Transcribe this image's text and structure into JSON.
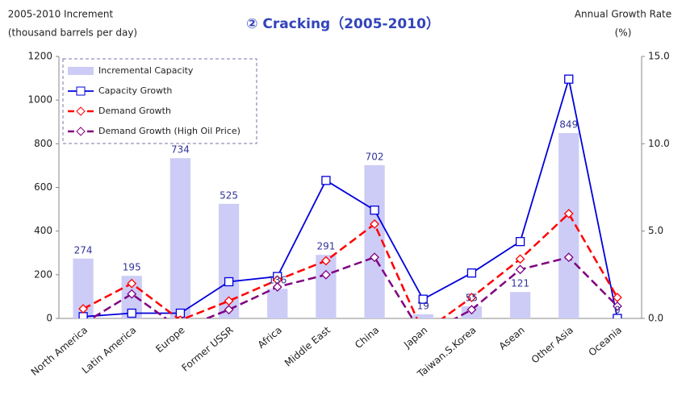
{
  "chart_data": {
    "type": "bar_line",
    "title": "② Cracking（2005-2010）",
    "y_label": [
      "2005-2010 Increment",
      "(thousand barrels per day)"
    ],
    "y2_label": [
      "Annual Growth Rate",
      "(%)"
    ],
    "categories": [
      "North America",
      "Latin America",
      "Europe",
      "Former USSR",
      "Africa",
      "Middle East",
      "China",
      "Japan",
      "Taiwan.S.Korea",
      "Asean",
      "Other Asia",
      "Oceania"
    ],
    "series": [
      {
        "name": "Incremental Capacity",
        "type": "bar",
        "axis": "y",
        "color": "#ccccf7",
        "values": [
          274,
          195,
          734,
          525,
          136,
          291,
          702,
          19,
          55,
          121,
          849,
          0
        ]
      },
      {
        "name": "Capacity Growth",
        "type": "line",
        "axis": "y2",
        "color": "#0000dd",
        "dash": false,
        "marker": "square",
        "values": [
          0.1,
          0.3,
          0.3,
          2.1,
          2.4,
          7.9,
          6.2,
          1.1,
          2.6,
          4.4,
          13.7,
          0.0
        ]
      },
      {
        "name": "Demand Growth",
        "type": "line",
        "axis": "y2",
        "color": "#ff0000",
        "dash": true,
        "marker": "diamond",
        "values": [
          0.55,
          2.0,
          -0.1,
          1.0,
          2.2,
          3.3,
          5.4,
          -0.8,
          1.2,
          3.4,
          6.0,
          1.2
        ]
      },
      {
        "name": "Demand Growth (High Oil Price)",
        "type": "line",
        "axis": "y2",
        "color": "#800080",
        "dash": true,
        "marker": "diamond",
        "values": [
          -0.3,
          1.4,
          -0.6,
          0.5,
          1.8,
          2.5,
          3.5,
          -1.0,
          0.5,
          2.8,
          3.5,
          0.7
        ]
      }
    ],
    "ylim": [
      0,
      1200
    ],
    "yticks": [
      0,
      200,
      400,
      600,
      800,
      1000,
      1200
    ],
    "y2lim": [
      0,
      15
    ],
    "y2ticks": [
      {
        "value": 0,
        "label": "0.0"
      },
      {
        "value": 5,
        "label": "5.0"
      },
      {
        "value": 10,
        "label": "10.0"
      },
      {
        "value": 15,
        "label": "15.0"
      }
    ],
    "legend": "top-left"
  }
}
